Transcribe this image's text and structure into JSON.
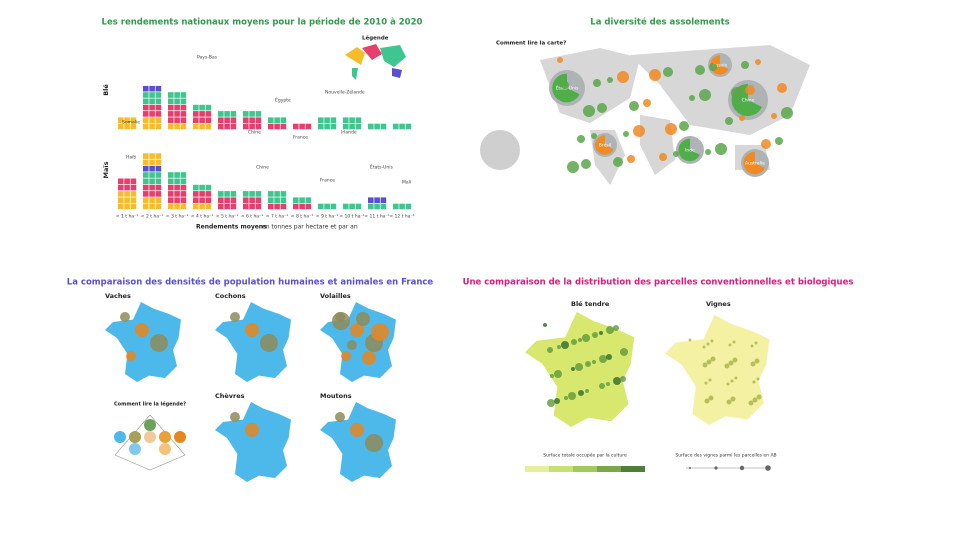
{
  "panels": [
    {
      "title": "Les rendements nationaux moyens pour la période de 2010 à 2020",
      "rows": [
        "Blé",
        "Maïs"
      ],
      "legend_title": "Légende",
      "x_labels": [
        "< 1 t ha⁻¹",
        "< 2 t ha⁻¹",
        "< 3 t ha⁻¹",
        "< 4 t ha⁻¹",
        "< 5 t ha⁻¹",
        "< 6 t ha⁻¹",
        "< 7 t ha⁻¹",
        "< 8 t ha⁻¹",
        "< 9 t ha⁻¹",
        "< 10 t ha⁻¹",
        "< 11 t ha⁻¹",
        "< 12 t ha⁻¹"
      ],
      "axis_title": "Rendements moyens",
      "axis_subtitle": "en tonnes par hectare et par an",
      "callouts": [
        "Somalie",
        "Pays-Bas",
        "Égypte",
        "Chine",
        "France",
        "Nouvelle-Zélande",
        "Irlande",
        "Haïti",
        "Chine",
        "France",
        "États-Unis",
        "Mali"
      ]
    },
    {
      "title": "La diversité des assolements",
      "question": "Comment lire la carte?",
      "circle_labels": [
        "États-Unis",
        "Russie",
        "Chine",
        "Brésil",
        "Inde",
        "Australie"
      ]
    },
    {
      "title": "La comparaison des densités de population humaines et animales en France",
      "maps": [
        "Vaches",
        "Cochons",
        "Volailles",
        "Chèvres",
        "Moutons"
      ],
      "legend_title": "Comment lire la légende?"
    },
    {
      "title": "Une comparaison de la distribution des parcelles conventionnelles et biologiques",
      "maps": [
        "Blé tendre",
        "Vignes"
      ],
      "legend_titles": [
        "Surface totale occupée par la culture",
        "Surface des vignes parmi les parcelles en AB"
      ]
    }
  ]
}
